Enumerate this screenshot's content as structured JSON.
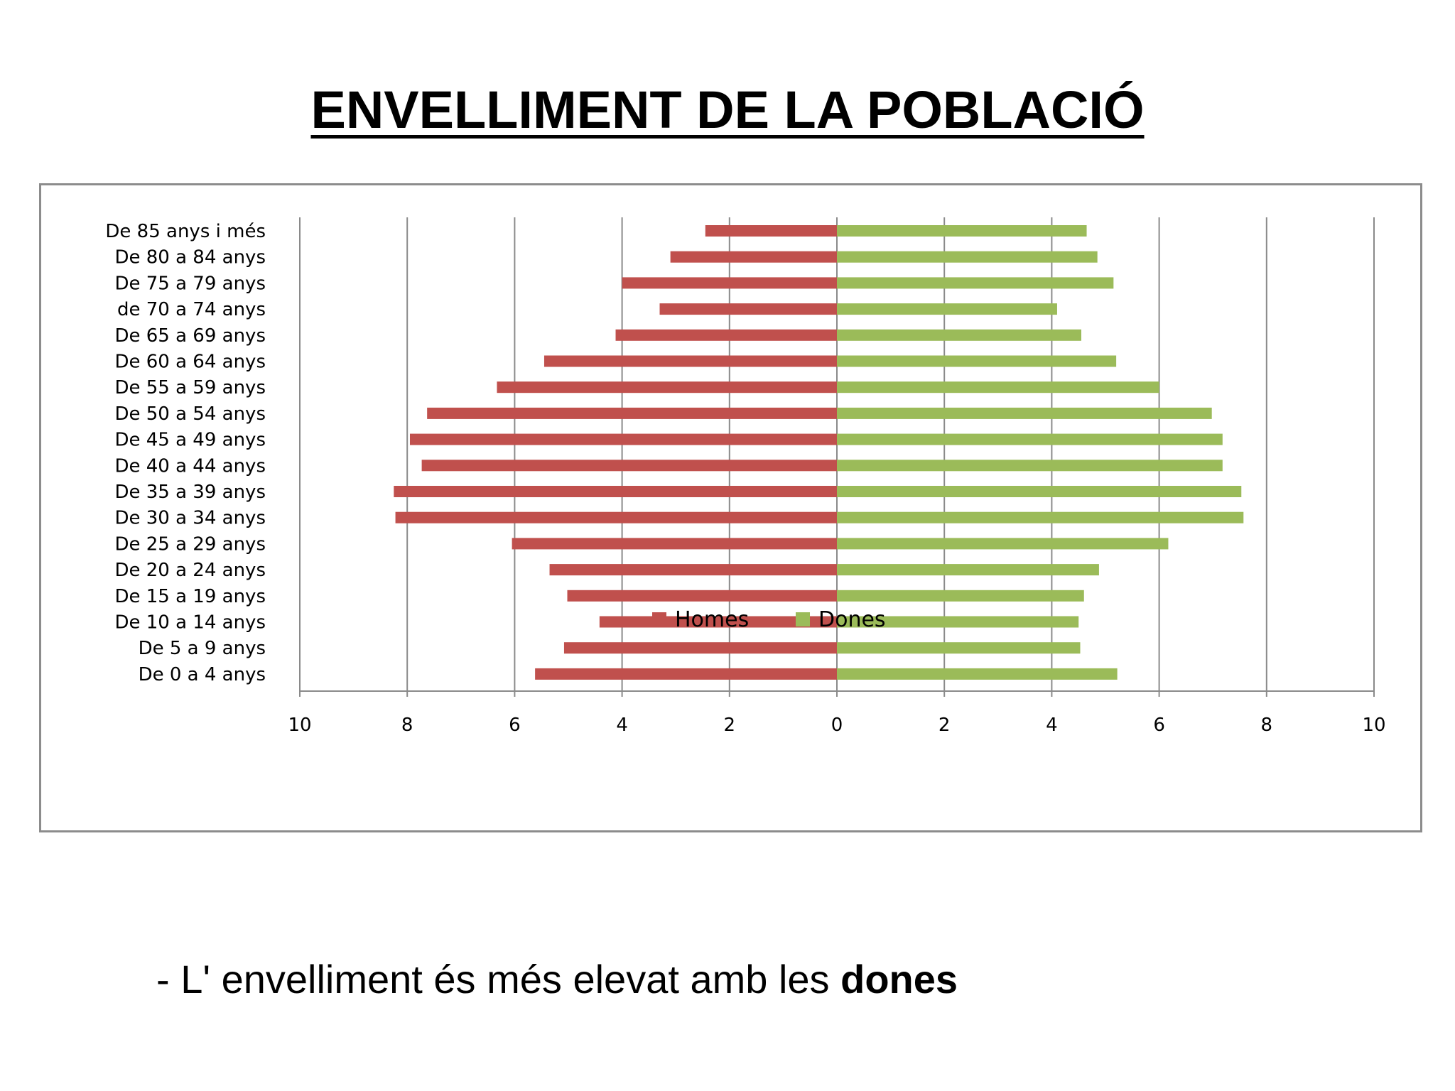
{
  "slide": {
    "title": "ENVELLIMENT DE LA POBLACIÓ",
    "bullet_text": "- L' envelliment és més elevat amb les ",
    "bullet_bold": "dones"
  },
  "chart_data": {
    "type": "bar",
    "orientation": "horizontal",
    "subtype": "population-pyramid",
    "categories": [
      "De 85 anys i més",
      "De 80 a 84 anys",
      "De 75 a 79 anys",
      "de 70 a 74 anys",
      "De 65 a 69 anys",
      "De 60 a 64 anys",
      "De 55 a 59 anys",
      "De 50 a 54 anys",
      "De 45 a 49 anys",
      "De 40 a 44 anys",
      "De 35 a 39 anys",
      "De 30 a 34 anys",
      "De 25 a 29 anys",
      "De 20 a 24 anys",
      "De 15 a 19 anys",
      "De 10 a 14 anys",
      "De 5 a 9 anys",
      "De 0 a 4 anys"
    ],
    "series": [
      {
        "name": "Homes",
        "color": "#c0504d",
        "side": "left",
        "values": [
          2.45,
          3.1,
          4.0,
          3.3,
          4.12,
          5.45,
          6.33,
          7.63,
          7.95,
          7.73,
          8.25,
          8.22,
          6.05,
          5.35,
          5.02,
          4.42,
          5.08,
          5.62
        ]
      },
      {
        "name": "Dones",
        "color": "#9bbb59",
        "side": "right",
        "values": [
          4.65,
          4.85,
          5.15,
          4.1,
          4.55,
          5.2,
          6.0,
          6.98,
          7.18,
          7.18,
          7.53,
          7.57,
          6.17,
          4.88,
          4.6,
          4.5,
          4.53,
          5.22
        ]
      }
    ],
    "xlim": [
      -10,
      10
    ],
    "xticks": [
      "10",
      "8",
      "6",
      "4",
      "2",
      "0",
      "2",
      "4",
      "6",
      "8",
      "10"
    ],
    "grid": true,
    "legend": "bottom-center",
    "title": "",
    "xlabel": "",
    "ylabel": ""
  }
}
